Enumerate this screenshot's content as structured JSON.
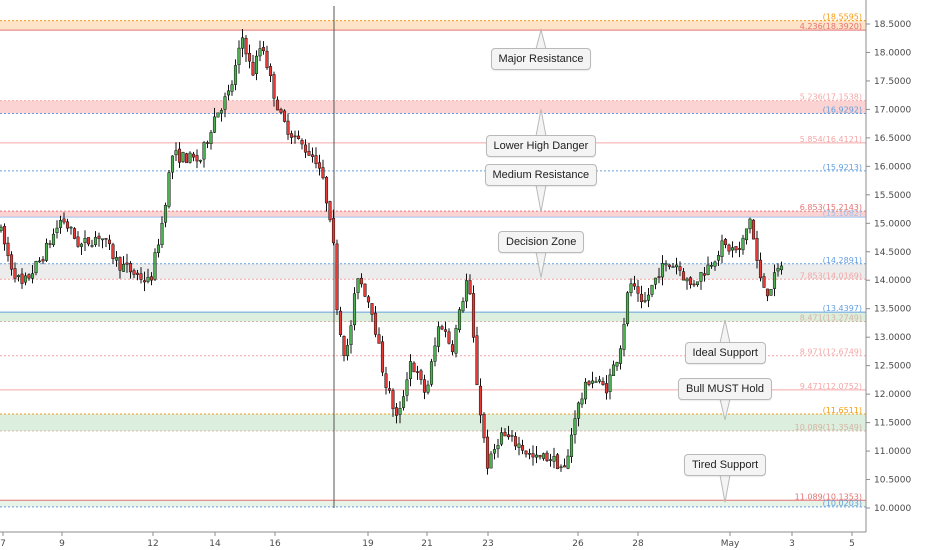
{
  "chart_data": {
    "type": "candlestick",
    "ylim": [
      9.9,
      18.6
    ],
    "y_ticks": [
      "18.5000",
      "18.0000",
      "17.5000",
      "17.0000",
      "16.5000",
      "16.0000",
      "15.5000",
      "15.0000",
      "14.5000",
      "14.0000",
      "13.5000",
      "13.0000",
      "12.5000",
      "12.0000",
      "11.5000",
      "11.0000",
      "10.5000",
      "10.0000"
    ],
    "x_ticks": [
      "7",
      "9",
      "12",
      "14",
      "16",
      "19",
      "21",
      "23",
      "26",
      "28",
      "May",
      "3",
      "5"
    ],
    "levels": [
      {
        "value": 18.5595,
        "label": "(18.5595)",
        "color": "#f39c12"
      },
      {
        "value": 18.392,
        "label": "4.236(18.3920)",
        "color": "#e57373"
      },
      {
        "value": 17.1538,
        "label": "5.236(17.1538)",
        "color": "#f4a6a6"
      },
      {
        "value": 16.9292,
        "label": "(16.9292)",
        "color": "#64a0e0"
      },
      {
        "value": 16.4121,
        "label": "5.854(16.4121)",
        "color": "#f4a6a6"
      },
      {
        "value": 15.9213,
        "label": "(15.9213)",
        "color": "#64a0e0"
      },
      {
        "value": 15.2143,
        "label": "6.853(15.2143)",
        "color": "#e57373"
      },
      {
        "value": 15.1082,
        "label": "(15.1082)",
        "color": "#9ec3ec"
      },
      {
        "value": 14.2891,
        "label": "(14.2891)",
        "color": "#64a0e0"
      },
      {
        "value": 14.0169,
        "label": "7.853(14.0169)",
        "color": "#f4a6a6"
      },
      {
        "value": 13.4397,
        "label": "(13.4397)",
        "color": "#64a0e0"
      },
      {
        "value": 13.2749,
        "label": "8.471(13.2749)",
        "color": "#d6b4a4"
      },
      {
        "value": 12.6749,
        "label": "8.971(12.6749)",
        "color": "#f4a6a6"
      },
      {
        "value": 12.0752,
        "label": "9.471(12.0752)",
        "color": "#f4a6a6"
      },
      {
        "value": 11.6511,
        "label": "(11.6511)",
        "color": "#f39c12"
      },
      {
        "value": 11.3549,
        "label": "10.089(11.3549)",
        "color": "#d6b4a4"
      },
      {
        "value": 10.1353,
        "label": "11.089(10.1353)",
        "color": "#e57373"
      },
      {
        "value": 10.0203,
        "label": "(10.0203)",
        "color": "#64a0e0"
      }
    ],
    "zones": [
      {
        "from": 18.392,
        "to": 18.5595,
        "color": "#fde3c8"
      },
      {
        "from": 16.9292,
        "to": 17.1538,
        "color": "#fbd3d3"
      },
      {
        "from": 15.1082,
        "to": 15.2143,
        "color": "#fbd3d3"
      },
      {
        "from": 14.0169,
        "to": 14.2891,
        "color": "#ececec"
      },
      {
        "from": 13.2749,
        "to": 13.4397,
        "color": "#dceedd"
      },
      {
        "from": 11.3549,
        "to": 11.6511,
        "color": "#dceedd"
      },
      {
        "from": 10.0203,
        "to": 10.1353,
        "color": "#e6f3e6"
      }
    ],
    "annotations": [
      {
        "text": "Major Resistance",
        "pointer_value": 18.4
      },
      {
        "text": "Lower High Danger",
        "pointer_value": 17.0
      },
      {
        "text": "Medium Resistance",
        "pointer_value": 15.2
      },
      {
        "text": "Decision Zone",
        "pointer_value": 14.05
      },
      {
        "text": "Ideal Support",
        "pointer_value": 13.3
      },
      {
        "text": "Bull MUST Hold",
        "pointer_value": 11.55
      },
      {
        "text": "Tired Support",
        "pointer_value": 10.1
      }
    ]
  }
}
